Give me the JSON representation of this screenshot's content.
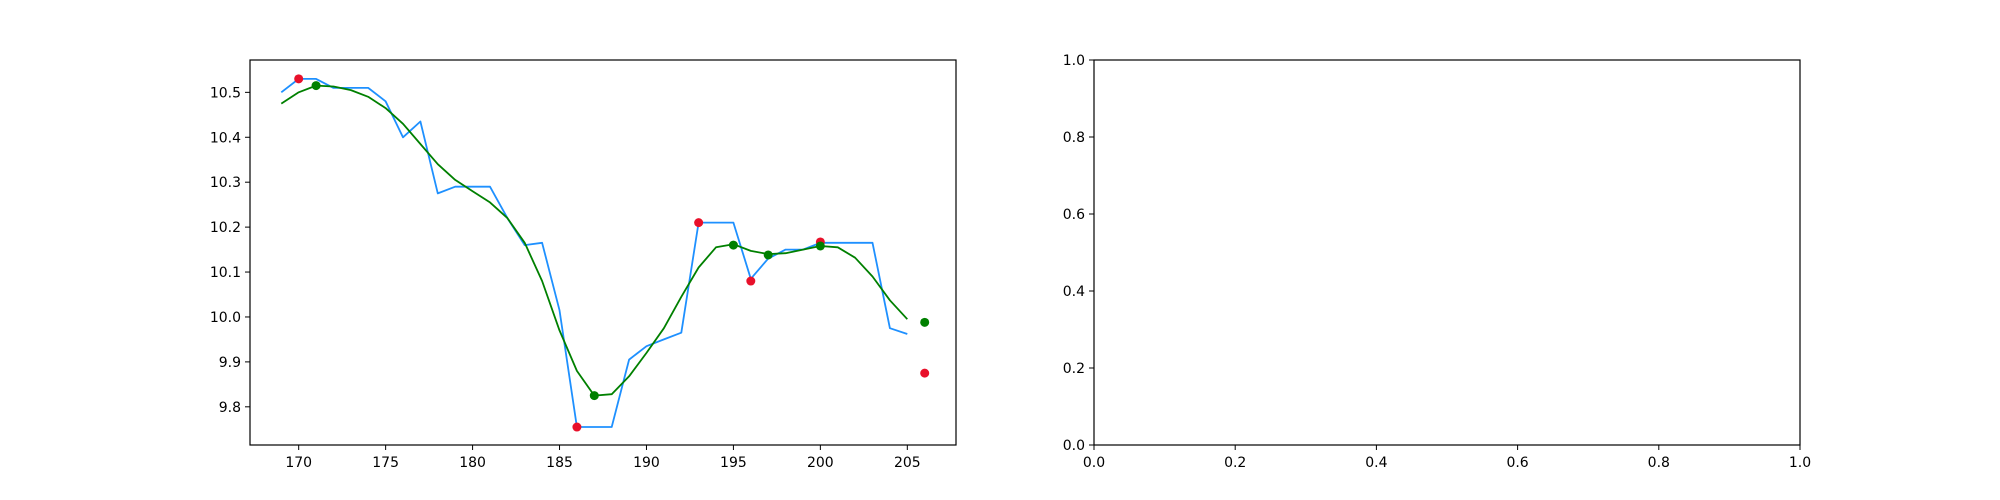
{
  "figure": {
    "background": "#ffffff"
  },
  "chart_data": [
    {
      "type": "line",
      "title": "",
      "xlabel": "",
      "ylabel": "",
      "xlim": [
        167.2,
        207.8
      ],
      "ylim": [
        9.715,
        10.572
      ],
      "grid": false,
      "x_ticks": [
        170,
        175,
        180,
        185,
        190,
        195,
        200,
        205
      ],
      "y_ticks": [
        9.8,
        9.9,
        10.0,
        10.1,
        10.2,
        10.3,
        10.4,
        10.5
      ],
      "series": [
        {
          "kind": "line",
          "color": "#1e90ff",
          "x": [
            169,
            170,
            171,
            172,
            173,
            174,
            175,
            176,
            177,
            178,
            179,
            180,
            181,
            182,
            183,
            184,
            185,
            186,
            187,
            188,
            189,
            190,
            191,
            192,
            193,
            194,
            195,
            196,
            197,
            198,
            199,
            200,
            201,
            202,
            203,
            204,
            205
          ],
          "y": [
            10.5,
            10.53,
            10.53,
            10.51,
            10.51,
            10.51,
            10.48,
            10.4,
            10.435,
            10.275,
            10.29,
            10.29,
            10.29,
            10.22,
            10.16,
            10.165,
            10.015,
            9.755,
            9.755,
            9.755,
            9.905,
            9.935,
            9.95,
            9.965,
            10.21,
            10.21,
            10.21,
            10.085,
            10.13,
            10.15,
            10.15,
            10.165,
            10.165,
            10.165,
            10.165,
            9.975,
            9.962
          ]
        },
        {
          "kind": "line",
          "color": "#008000",
          "x": [
            169,
            170,
            171,
            172,
            173,
            174,
            175,
            176,
            177,
            178,
            179,
            180,
            181,
            182,
            183,
            184,
            185,
            186,
            187,
            188,
            189,
            190,
            191,
            192,
            193,
            194,
            195,
            196,
            197,
            198,
            199,
            200,
            201,
            202,
            203,
            204,
            205
          ],
          "y": [
            10.475,
            10.5,
            10.515,
            10.513,
            10.505,
            10.49,
            10.465,
            10.43,
            10.385,
            10.34,
            10.305,
            10.28,
            10.255,
            10.22,
            10.165,
            10.08,
            9.97,
            9.88,
            9.825,
            9.828,
            9.868,
            9.92,
            9.975,
            10.045,
            10.11,
            10.155,
            10.162,
            10.147,
            10.14,
            10.142,
            10.15,
            10.158,
            10.155,
            10.132,
            10.09,
            10.037,
            9.995
          ]
        },
        {
          "kind": "scatter",
          "color": "#e8102a",
          "x": [
            170,
            186,
            193,
            196,
            200,
            206
          ],
          "y": [
            10.53,
            9.755,
            10.21,
            10.08,
            10.167,
            9.875
          ]
        },
        {
          "kind": "scatter",
          "color": "#008000",
          "x": [
            171,
            187,
            195,
            197,
            200,
            206
          ],
          "y": [
            10.515,
            9.825,
            10.16,
            10.138,
            10.158,
            9.988
          ]
        }
      ]
    },
    {
      "type": "line",
      "title": "",
      "xlabel": "",
      "ylabel": "",
      "xlim": [
        0.0,
        1.0
      ],
      "ylim": [
        0.0,
        1.0
      ],
      "grid": false,
      "x_ticks": [
        0.0,
        0.2,
        0.4,
        0.6,
        0.8,
        1.0
      ],
      "y_ticks": [
        0.0,
        0.2,
        0.4,
        0.6,
        0.8,
        1.0
      ],
      "series": []
    }
  ]
}
